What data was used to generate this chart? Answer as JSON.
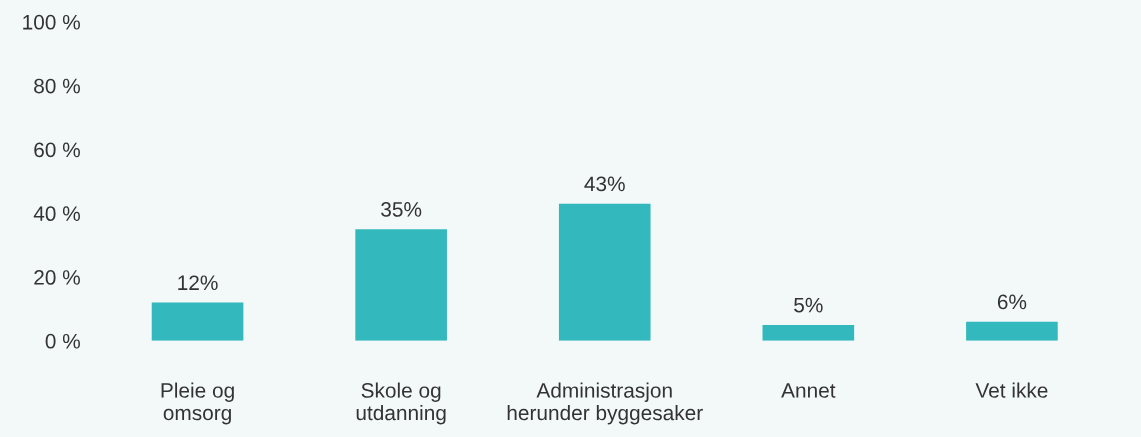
{
  "chart_data": {
    "type": "bar",
    "categories": [
      "Pleie og\nomsorg",
      "Skole og\nutdanning",
      "Administrasjon\nherunder byggesaker",
      "Annet",
      "Vet ikke"
    ],
    "values": [
      12,
      35,
      43,
      5,
      6
    ],
    "value_labels": [
      "12%",
      "35%",
      "43%",
      "5%",
      "6%"
    ],
    "color": "#33b8bd",
    "ylim": [
      0,
      100
    ],
    "yticks": [
      {
        "value": 0,
        "label": "0 %"
      },
      {
        "value": 20,
        "label": "20 %"
      },
      {
        "value": 40,
        "label": "40 %"
      },
      {
        "value": 60,
        "label": "60 %"
      },
      {
        "value": 80,
        "label": "80 %"
      },
      {
        "value": 100,
        "label": "100 %"
      }
    ],
    "grid": false,
    "legend": false
  }
}
